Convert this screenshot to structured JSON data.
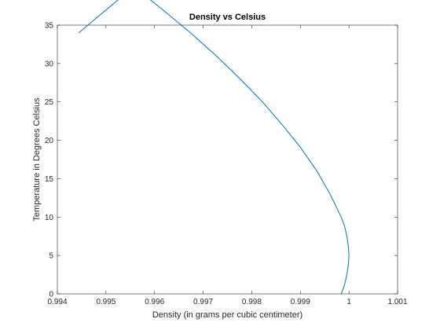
{
  "chart_data": {
    "type": "line",
    "title": "Density vs Celsius",
    "xlabel": "Density (in grams per cubic centimeter)",
    "ylabel": "Temperature in Degrees Celsius",
    "xlim": [
      0.994,
      1.001
    ],
    "ylim": [
      0,
      35
    ],
    "x_ticks": [
      0.994,
      0.995,
      0.996,
      0.997,
      0.998,
      0.999,
      1,
      1.001
    ],
    "x_tick_labels": [
      "0.994",
      "0.995",
      "0.996",
      "0.997",
      "0.998",
      "0.999",
      "1",
      "1.001"
    ],
    "y_ticks": [
      0,
      5,
      10,
      15,
      20,
      25,
      30,
      35
    ],
    "y_tick_labels": [
      "0",
      "5",
      "10",
      "15",
      "20",
      "25",
      "30",
      "35"
    ],
    "grid": false,
    "box": true,
    "series": [
      {
        "color": "#0072BD",
        "x": [
          0.99984,
          0.9999,
          0.99994,
          0.99997,
          0.99999,
          1.0,
          0.99999,
          0.99997,
          0.99994,
          0.9999,
          0.99984,
          0.99961,
          0.99934,
          0.99901,
          0.99863,
          0.99822,
          0.99776,
          0.99727,
          0.99674,
          0.99617,
          0.99557,
          0.99444
        ],
        "y": [
          0,
          1,
          2,
          3,
          4,
          5,
          6,
          7,
          8,
          9,
          10,
          13,
          16,
          19,
          22,
          25,
          28,
          31,
          34,
          37,
          40,
          34
        ]
      }
    ]
  }
}
